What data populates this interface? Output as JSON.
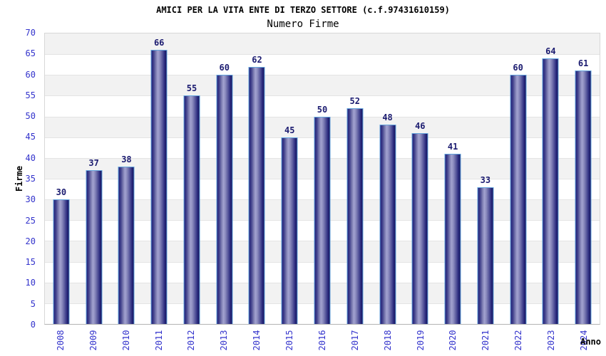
{
  "chart_data": {
    "type": "bar",
    "title": "AMICI PER LA VITA ENTE DI TERZO SETTORE (c.f.97431610159)",
    "subtitle": "Numero Firme",
    "xlabel": "Anno",
    "ylabel": "Firme",
    "categories": [
      "2008",
      "2009",
      "2010",
      "2011",
      "2012",
      "2013",
      "2014",
      "2015",
      "2016",
      "2017",
      "2018",
      "2019",
      "2020",
      "2021",
      "2022",
      "2023",
      "2024"
    ],
    "values": [
      30,
      37,
      38,
      66,
      55,
      60,
      62,
      45,
      50,
      52,
      48,
      46,
      41,
      33,
      60,
      64,
      61
    ],
    "ylim": [
      0,
      70
    ],
    "ytick_step": 5,
    "grid": "horizontal gridlines every 5 units with alternating gray/white bands",
    "legend": "none",
    "bar_labels": "value shown above each bar",
    "x_tick_rotation": "vertical"
  },
  "colors": {
    "title": "#333333",
    "subtitle": "#666666",
    "tick_label": "#3333cc",
    "value_label": "#1b1b70",
    "band_gray": "#f2f2f2",
    "band_white": "#ffffff",
    "gridline": "#e4e4e4",
    "plot_border": "#d8d8d8",
    "axis_line": "#b3b3b3",
    "bar_border": "#63a3dc",
    "bar_edge": "#20207a",
    "bar_light": "#a2a2d0"
  }
}
